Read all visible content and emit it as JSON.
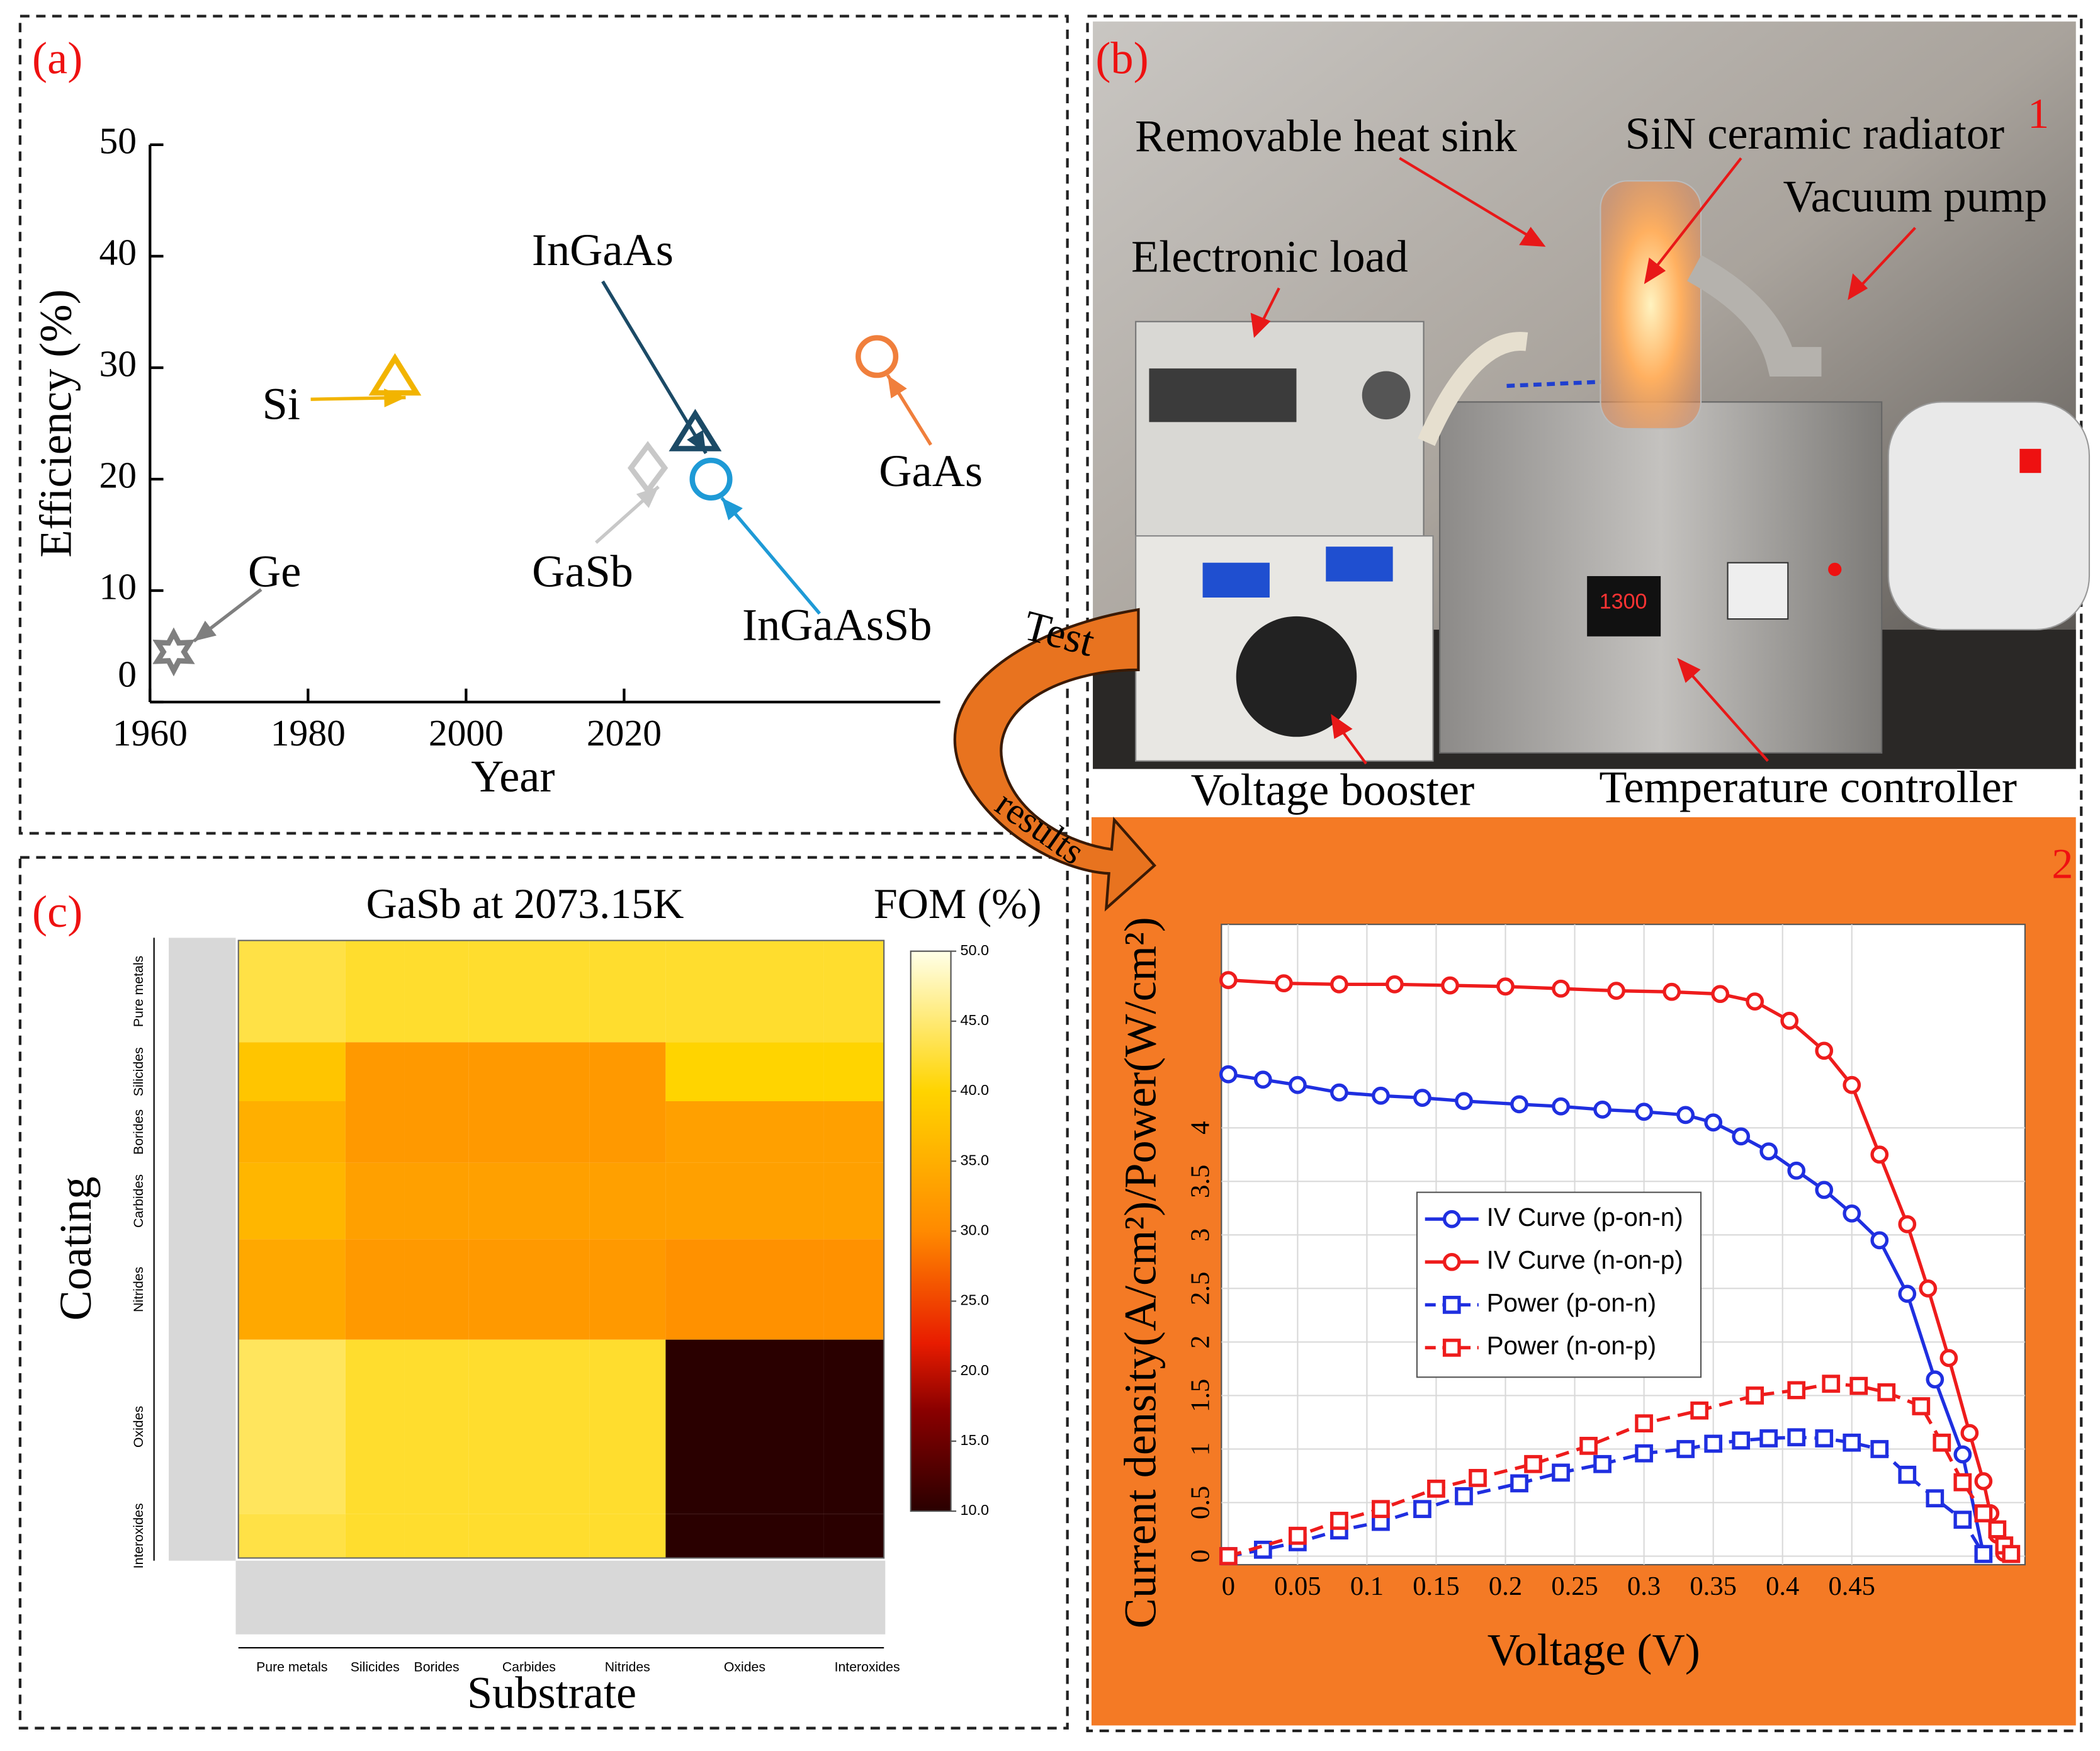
{
  "figure": {
    "panel_labels": {
      "a": "(a)",
      "b": "(b)",
      "c": "(c)",
      "b1": "1",
      "b2": "2"
    },
    "connector": {
      "top": "Test",
      "bottom": "results"
    },
    "photo_labels": {
      "heat_sink": "Removable heat sink",
      "radiator": "SiN ceramic radiator",
      "pump": "Vacuum pump",
      "load": "Electronic load",
      "booster": "Voltage booster",
      "controller": "Temperature controller"
    }
  },
  "chart_data": [
    {
      "type": "scatter",
      "xlabel": "Year",
      "ylabel": "Efficiency (%)",
      "xlim": [
        1960,
        2060
      ],
      "ylim": [
        0,
        50
      ],
      "xticks": [
        1960,
        1980,
        2000,
        2020
      ],
      "yticks": [
        0,
        10,
        20,
        30,
        40,
        50
      ],
      "series": [
        {
          "name": "Ge",
          "color": "#7f7f7f",
          "marker": "star",
          "x": [
            1963
          ],
          "values": [
            4.5
          ]
        },
        {
          "name": "Si",
          "color": "#f2b400",
          "marker": "triangle",
          "x": [
            1991
          ],
          "values": [
            29
          ]
        },
        {
          "name": "GaSb",
          "color": "#c8c8c8",
          "marker": "diamond",
          "x": [
            2023
          ],
          "values": [
            21
          ]
        },
        {
          "name": "InGaAs",
          "color": "#1b4a66",
          "marker": "triangle",
          "x": [
            2029
          ],
          "values": [
            24
          ]
        },
        {
          "name": "InGaAsSb",
          "color": "#1e9ad6",
          "marker": "circle",
          "x": [
            2031
          ],
          "values": [
            20
          ]
        },
        {
          "name": "GaAs",
          "color": "#f07f3c",
          "marker": "circle",
          "x": [
            2052
          ],
          "values": [
            31
          ]
        }
      ]
    },
    {
      "type": "heatmap",
      "title": "GaSb at 2073.15K",
      "colorbar_label": "FOM (%)",
      "xlabel": "Substrate",
      "ylabel": "Coating",
      "categories": [
        "Pure metals",
        "Silicides",
        "Borides",
        "Carbides",
        "Nitrides",
        "Oxides",
        "Interoxides"
      ],
      "row_categories": [
        "Pure metals",
        "Silicides",
        "Borides",
        "Carbides",
        "Nitrides",
        "Oxides",
        "Interoxides"
      ],
      "values": [
        [
          43,
          42,
          42,
          42,
          42,
          42,
          42
        ],
        [
          38,
          32,
          32,
          32,
          32,
          40,
          40
        ],
        [
          35,
          32,
          32,
          32,
          32,
          33,
          33
        ],
        [
          36,
          33,
          33,
          33,
          33,
          33,
          33
        ],
        [
          34,
          32,
          32,
          32,
          32,
          31,
          31
        ],
        [
          44,
          42,
          42,
          42,
          42,
          10,
          10
        ],
        [
          43,
          42,
          42,
          42,
          42,
          10,
          10
        ]
      ],
      "zlim": [
        10,
        50
      ],
      "zticks": [
        {
          "value": 10,
          "label": "10.0"
        },
        {
          "value": 15,
          "label": "15.0"
        },
        {
          "value": 20,
          "label": "20.0"
        },
        {
          "value": 25,
          "label": "25.0"
        },
        {
          "value": 30,
          "label": "30.0"
        },
        {
          "value": 35,
          "label": "35.0"
        },
        {
          "value": 40,
          "label": "40.0"
        },
        {
          "value": 45,
          "label": "45.0"
        },
        {
          "value": 50,
          "label": "50.0"
        }
      ]
    },
    {
      "type": "line",
      "xlabel": "Voltage (V)",
      "ylabel": "Current density(A/cm²)/Power(W/cm²)",
      "xlim": [
        -0.005,
        0.575
      ],
      "ylim": [
        -0.08,
        5.9
      ],
      "xticks": [
        0,
        0.05,
        0.1,
        0.15,
        0.2,
        0.25,
        0.3,
        0.35,
        0.4,
        0.45
      ],
      "yticks": [
        0,
        0.5,
        1,
        1.5,
        2,
        2.5,
        3,
        3.5,
        4
      ],
      "grid": true,
      "legend": "center left",
      "series": [
        {
          "name": "IV Curve (p-on-n)",
          "color": "#1f2fe0",
          "marker": "circle",
          "linestyle": "solid",
          "x": [
            0,
            0.025,
            0.05,
            0.08,
            0.11,
            0.14,
            0.17,
            0.21,
            0.24,
            0.27,
            0.3,
            0.33,
            0.35,
            0.37,
            0.39,
            0.41,
            0.43,
            0.45,
            0.47,
            0.49,
            0.51,
            0.53,
            0.545
          ],
          "values": [
            4.5,
            4.45,
            4.4,
            4.33,
            4.3,
            4.28,
            4.25,
            4.22,
            4.2,
            4.17,
            4.15,
            4.12,
            4.05,
            3.92,
            3.78,
            3.6,
            3.42,
            3.2,
            2.95,
            2.45,
            1.65,
            0.95,
            0.02
          ]
        },
        {
          "name": "IV Curve (n-on-p)",
          "color": "#ee1c1c",
          "marker": "circle",
          "linestyle": "solid",
          "x": [
            0,
            0.04,
            0.08,
            0.12,
            0.16,
            0.2,
            0.24,
            0.28,
            0.32,
            0.355,
            0.38,
            0.405,
            0.43,
            0.45,
            0.47,
            0.49,
            0.505,
            0.52,
            0.535,
            0.545,
            0.55,
            0.555,
            0.56
          ],
          "values": [
            5.38,
            5.35,
            5.34,
            5.34,
            5.33,
            5.32,
            5.3,
            5.28,
            5.27,
            5.25,
            5.18,
            5.0,
            4.72,
            4.4,
            3.75,
            3.1,
            2.5,
            1.85,
            1.15,
            0.7,
            0.4,
            0.2,
            0.03
          ]
        },
        {
          "name": "Power (p-on-n)",
          "color": "#1f2fe0",
          "marker": "square",
          "linestyle": "dashed",
          "x": [
            0,
            0.025,
            0.05,
            0.08,
            0.11,
            0.14,
            0.17,
            0.21,
            0.24,
            0.27,
            0.3,
            0.33,
            0.35,
            0.37,
            0.39,
            0.41,
            0.43,
            0.45,
            0.47,
            0.49,
            0.51,
            0.53,
            0.545
          ],
          "values": [
            0,
            0.06,
            0.13,
            0.24,
            0.32,
            0.44,
            0.56,
            0.68,
            0.78,
            0.86,
            0.96,
            1.0,
            1.05,
            1.08,
            1.1,
            1.11,
            1.1,
            1.06,
            1.0,
            0.76,
            0.54,
            0.34,
            0.02
          ]
        },
        {
          "name": "Power (n-on-p)",
          "color": "#ee1c1c",
          "marker": "square",
          "linestyle": "dashed",
          "x": [
            0,
            0.05,
            0.08,
            0.11,
            0.15,
            0.18,
            0.22,
            0.26,
            0.3,
            0.34,
            0.38,
            0.41,
            0.435,
            0.455,
            0.475,
            0.5,
            0.515,
            0.53,
            0.545,
            0.555,
            0.56,
            0.565
          ],
          "values": [
            0,
            0.19,
            0.33,
            0.44,
            0.63,
            0.73,
            0.86,
            1.03,
            1.24,
            1.36,
            1.5,
            1.55,
            1.61,
            1.59,
            1.53,
            1.4,
            1.06,
            0.69,
            0.4,
            0.25,
            0.1,
            0.02
          ]
        }
      ]
    }
  ]
}
